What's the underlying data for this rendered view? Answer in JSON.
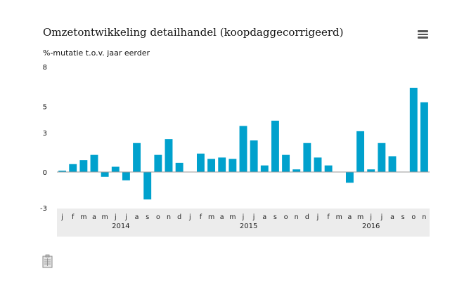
{
  "chart_data": {
    "type": "bar",
    "title": "Omzetontwikkeling detailhandel (koopdaggecorrigeerd)",
    "ylabel": "%-mutatie t.o.v. jaar eerder",
    "ylim": [
      -3,
      8
    ],
    "yticks": [
      "8",
      "5",
      "3",
      "0",
      "-3"
    ],
    "ytick_values": [
      8,
      5,
      3,
      0,
      -3
    ],
    "categories": [
      "j",
      "f",
      "m",
      "a",
      "m",
      "j",
      "j",
      "a",
      "s",
      "o",
      "n",
      "d",
      "j",
      "f",
      "m",
      "a",
      "m",
      "j",
      "j",
      "a",
      "s",
      "o",
      "n",
      "d",
      "j",
      "f",
      "m",
      "a",
      "m",
      "j",
      "j",
      "a",
      "s",
      "o",
      "n"
    ],
    "years": [
      {
        "label": "2014",
        "start": 0,
        "end": 11
      },
      {
        "label": "2015",
        "start": 12,
        "end": 23
      },
      {
        "label": "2016",
        "start": 24,
        "end": 34
      }
    ],
    "values": [
      0.1,
      0.6,
      0.9,
      1.3,
      -0.4,
      0.4,
      -0.7,
      2.2,
      -2.3,
      1.3,
      2.5,
      0.7,
      null,
      1.4,
      1.0,
      1.1,
      1.0,
      3.5,
      2.4,
      0.5,
      3.9,
      1.3,
      0.2,
      2.2,
      1.1,
      0.5,
      null,
      -0.9,
      3.1,
      0.2,
      2.2,
      1.2,
      null,
      6.4,
      5.3
    ],
    "color": "#00a1cd",
    "grid": false,
    "legend": "none"
  },
  "icons": {
    "menu": "hamburger-menu-icon",
    "table": "table-view-icon"
  }
}
